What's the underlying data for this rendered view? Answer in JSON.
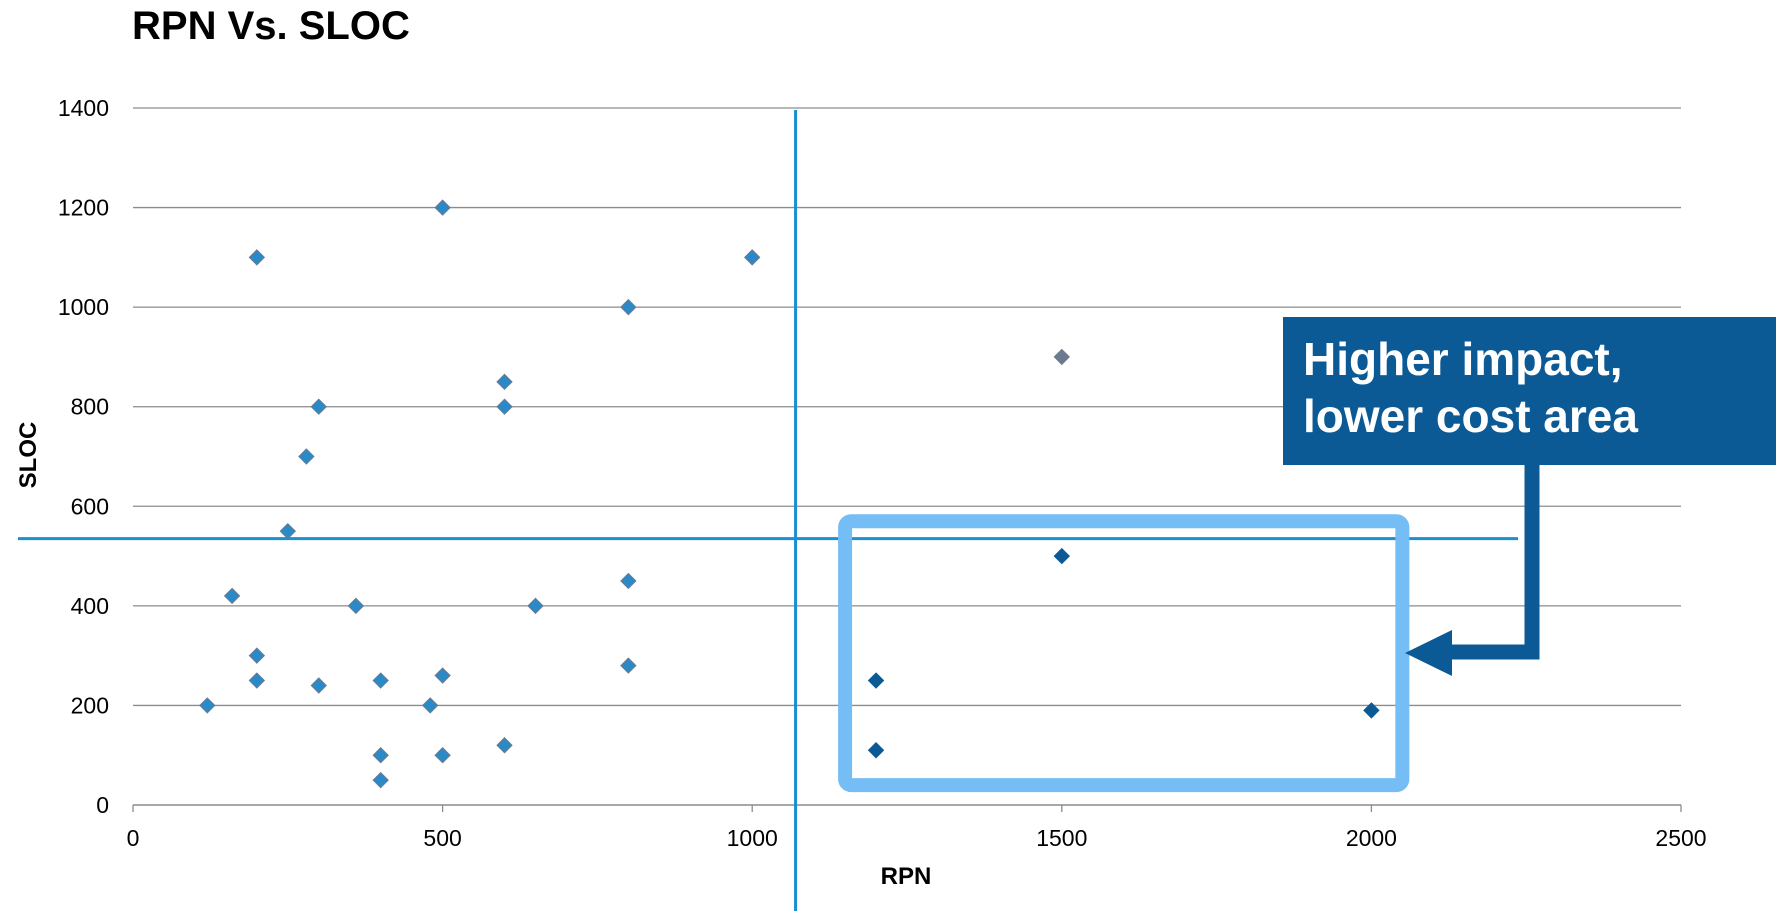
{
  "chart_data": {
    "type": "scatter",
    "title": "RPN Vs. SLOC",
    "xlabel": "RPN",
    "ylabel": "SLOC",
    "xlim": [
      0,
      2500
    ],
    "ylim": [
      0,
      1400
    ],
    "x_ticks": [
      0,
      500,
      1000,
      1500,
      2000,
      2500
    ],
    "y_ticks": [
      0,
      200,
      400,
      600,
      800,
      1000,
      1200,
      1400
    ],
    "grid": "horizontal",
    "legend": "none",
    "series": [
      {
        "color": "#2a8ac8",
        "points": [
          {
            "x": 120,
            "y": 200
          },
          {
            "x": 160,
            "y": 420
          },
          {
            "x": 200,
            "y": 1100
          },
          {
            "x": 200,
            "y": 300
          },
          {
            "x": 200,
            "y": 250
          },
          {
            "x": 250,
            "y": 550
          },
          {
            "x": 280,
            "y": 700
          },
          {
            "x": 300,
            "y": 800
          },
          {
            "x": 300,
            "y": 240
          },
          {
            "x": 360,
            "y": 400
          },
          {
            "x": 400,
            "y": 250
          },
          {
            "x": 400,
            "y": 100
          },
          {
            "x": 400,
            "y": 50
          },
          {
            "x": 480,
            "y": 200
          },
          {
            "x": 500,
            "y": 1200
          },
          {
            "x": 500,
            "y": 260
          },
          {
            "x": 500,
            "y": 100
          },
          {
            "x": 600,
            "y": 850
          },
          {
            "x": 600,
            "y": 800
          },
          {
            "x": 600,
            "y": 120
          },
          {
            "x": 650,
            "y": 400
          },
          {
            "x": 800,
            "y": 1000
          },
          {
            "x": 800,
            "y": 450
          },
          {
            "x": 800,
            "y": 280
          },
          {
            "x": 1000,
            "y": 1100
          }
        ]
      },
      {
        "color": "#0b5a96",
        "points": [
          {
            "x": 1200,
            "y": 250
          },
          {
            "x": 1200,
            "y": 110
          },
          {
            "x": 1500,
            "y": 500
          },
          {
            "x": 2000,
            "y": 190
          }
        ]
      },
      {
        "color": "#6b7a8f",
        "points": [
          {
            "x": 1500,
            "y": 900
          }
        ]
      }
    ],
    "annotations": {
      "divider_x": 1070,
      "divider_y": 535,
      "highlight_region": {
        "x": [
          1150,
          2050
        ],
        "y": [
          40,
          570
        ]
      },
      "callout_lines": [
        "Higher impact,",
        "lower cost area"
      ]
    },
    "colors": {
      "divider": "#1a8fd1",
      "highlight": "#75bdf5",
      "callout_bg": "#0b5a96",
      "grid": "#8c8c8c"
    }
  }
}
